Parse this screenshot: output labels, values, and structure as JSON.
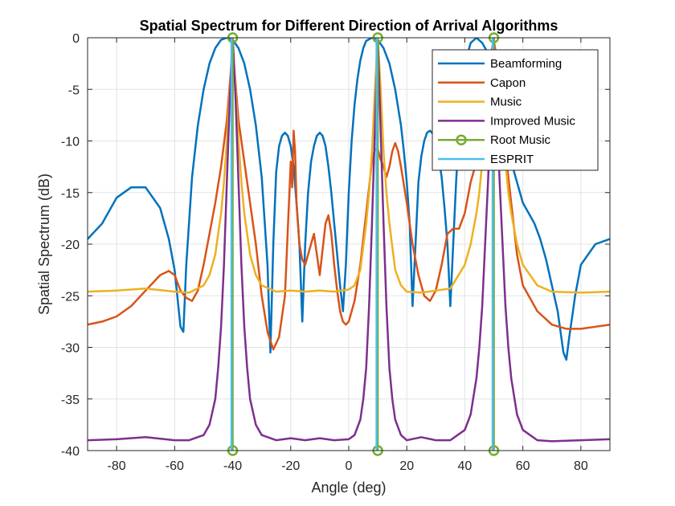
{
  "chart_data": {
    "type": "line",
    "title": "Spatial Spectrum for Different Direction of Arrival Algorithms",
    "xlabel": "Angle (deg)",
    "ylabel": "Spatial Spectrum (dB)",
    "xlim": [
      -90,
      90
    ],
    "ylim": [
      -40,
      0
    ],
    "xticks": [
      -80,
      -60,
      -40,
      -20,
      0,
      20,
      40,
      60,
      80
    ],
    "yticks": [
      0,
      -5,
      -10,
      -15,
      -20,
      -25,
      -30,
      -35,
      -40
    ],
    "grid": true,
    "legend_position": "top-right",
    "series": [
      {
        "name": "Beamforming",
        "color": "#0072BD",
        "x": [
          -90,
          -85,
          -80,
          -75,
          -70,
          -65,
          -62,
          -60,
          -58,
          -57,
          -56,
          -54,
          -52,
          -50,
          -48,
          -46,
          -44,
          -42,
          -40,
          -38,
          -36,
          -34,
          -32,
          -30,
          -28,
          -27,
          -26,
          -25,
          -24,
          -23,
          -22,
          -21,
          -20,
          -19,
          -18,
          -17,
          -16,
          -15,
          -14,
          -13,
          -12,
          -11,
          -10,
          -9,
          -8,
          -7,
          -6,
          -5,
          -4,
          -3,
          -2,
          -1,
          0,
          1,
          2,
          3,
          4,
          5,
          6,
          8,
          10,
          12,
          14,
          16,
          18,
          19,
          20,
          21,
          22,
          23,
          24,
          25,
          26,
          27,
          28,
          29,
          30,
          31,
          32,
          33,
          34,
          35,
          36,
          37,
          38,
          39,
          40,
          41,
          42,
          44,
          46,
          48,
          50,
          52,
          54,
          56,
          58,
          60,
          62,
          64,
          66,
          68,
          70,
          72,
          74,
          75,
          76,
          77,
          78,
          80,
          85,
          90
        ],
        "y": [
          -19.5,
          -18,
          -15.5,
          -14.5,
          -14.5,
          -16.5,
          -19.5,
          -22.5,
          -28,
          -28.5,
          -22,
          -13.5,
          -8.5,
          -5,
          -2.5,
          -1,
          -0.2,
          0,
          -0.2,
          -1,
          -2.5,
          -5,
          -8.5,
          -13.5,
          -22,
          -30.5,
          -20,
          -13,
          -10.5,
          -9.5,
          -9.2,
          -9.5,
          -10.5,
          -12.5,
          -16,
          -20,
          -27.5,
          -20,
          -15,
          -12,
          -10.5,
          -9.5,
          -9.2,
          -9.5,
          -10.5,
          -12.5,
          -15,
          -18,
          -21,
          -24,
          -26.5,
          -22,
          -15,
          -10,
          -6.5,
          -4,
          -2.2,
          -1,
          -0.3,
          0,
          -0.2,
          -1,
          -2.5,
          -5,
          -8.5,
          -11,
          -14,
          -18,
          -26,
          -20,
          -14,
          -11.5,
          -10,
          -9.2,
          -9,
          -9.3,
          -10,
          -11.5,
          -13.5,
          -16.5,
          -20,
          -26,
          -20,
          -14,
          -9,
          -5.5,
          -3,
          -1.5,
          -0.5,
          0,
          -0.5,
          -1.5,
          -3,
          -5.5,
          -9,
          -12,
          -14,
          -16,
          -17,
          -18,
          -19.5,
          -21.5,
          -24,
          -26.5,
          -30.5,
          -31.2,
          -29,
          -27,
          -25,
          -22,
          -20,
          -19.5
        ]
      },
      {
        "name": "Capon",
        "color": "#D95319",
        "x": [
          -90,
          -85,
          -80,
          -75,
          -70,
          -65,
          -62,
          -60,
          -58,
          -56,
          -54,
          -52,
          -50,
          -48,
          -46,
          -44,
          -42,
          -41,
          -40,
          -39,
          -38,
          -36,
          -34,
          -32,
          -30,
          -28,
          -26,
          -24,
          -22,
          -20,
          -19.5,
          -19,
          -18.5,
          -18,
          -17,
          -16,
          -15,
          -14,
          -12,
          -10,
          -8,
          -7,
          -6,
          -5,
          -4,
          -3,
          -2,
          -1,
          0,
          2,
          4,
          6,
          8,
          9,
          10,
          11,
          12,
          13,
          14,
          15,
          16,
          17,
          18,
          20,
          22,
          24,
          26,
          28,
          30,
          32,
          34,
          36,
          38,
          40,
          42,
          44,
          46,
          48,
          49,
          50,
          51,
          52,
          54,
          56,
          58,
          60,
          65,
          70,
          75,
          80,
          85,
          90
        ],
        "y": [
          -27.8,
          -27.5,
          -27,
          -26,
          -24.5,
          -23,
          -22.6,
          -23,
          -24.5,
          -25.2,
          -25.5,
          -24.5,
          -22,
          -19,
          -16,
          -12.5,
          -8,
          -4.5,
          -1,
          -4.5,
          -8,
          -12,
          -16,
          -20,
          -25,
          -28.5,
          -30.2,
          -29,
          -25,
          -12,
          -14.5,
          -9,
          -11,
          -16,
          -20,
          -21.5,
          -22,
          -21,
          -19,
          -23,
          -18,
          -17.2,
          -19,
          -22,
          -24.5,
          -26.5,
          -27.5,
          -27.8,
          -27.5,
          -25.5,
          -22,
          -17,
          -12,
          -10.8,
          -10.8,
          -11.8,
          -12.5,
          -13.5,
          -12.5,
          -11,
          -10.2,
          -11,
          -12.5,
          -16,
          -20,
          -23,
          -25,
          -25.5,
          -24.5,
          -22,
          -19,
          -18.5,
          -18.5,
          -17,
          -14,
          -12,
          -8.5,
          -5,
          -1.5,
          -0.3,
          -2,
          -5,
          -11,
          -16,
          -21,
          -24,
          -26.5,
          -27.8,
          -28.2,
          -28.2,
          -28,
          -27.8
        ]
      },
      {
        "name": "Music",
        "color": "#EDB120",
        "x": [
          -90,
          -80,
          -70,
          -60,
          -55,
          -50,
          -48,
          -46,
          -44,
          -43,
          -42,
          -41,
          -40,
          -39,
          -38,
          -37,
          -36,
          -34,
          -32,
          -30,
          -25,
          -20,
          -15,
          -10,
          -5,
          0,
          2,
          4,
          6,
          7,
          8,
          9,
          10,
          11,
          12,
          13,
          14,
          16,
          18,
          20,
          25,
          30,
          35,
          40,
          42,
          44,
          45,
          46,
          47,
          48,
          49,
          50,
          51,
          52,
          53,
          54,
          55,
          56,
          58,
          60,
          65,
          70,
          80,
          90
        ],
        "y": [
          -24.6,
          -24.5,
          -24.3,
          -24.6,
          -24.7,
          -24,
          -23,
          -21,
          -17,
          -14,
          -10,
          -5,
          0,
          -5,
          -10,
          -14,
          -17,
          -21,
          -23,
          -24,
          -24.6,
          -24.5,
          -24.6,
          -24.5,
          -24.6,
          -24.4,
          -24,
          -22.5,
          -18,
          -15,
          -11,
          -5,
          0,
          -5,
          -11,
          -15,
          -18,
          -22.5,
          -24,
          -24.6,
          -24.7,
          -24.5,
          -24.3,
          -22,
          -20,
          -17,
          -15,
          -12,
          -10,
          -7,
          -4,
          0,
          -4,
          -7,
          -10,
          -12,
          -15,
          -17,
          -20,
          -22,
          -24,
          -24.6,
          -24.7,
          -24.6
        ]
      },
      {
        "name": "Improved Music",
        "color": "#7E2F8E",
        "x": [
          -90,
          -80,
          -70,
          -60,
          -55,
          -50,
          -48,
          -46,
          -45,
          -44,
          -43,
          -42,
          -41,
          -40,
          -39,
          -38,
          -37,
          -36,
          -35,
          -34,
          -32,
          -30,
          -25,
          -20,
          -15,
          -10,
          -5,
          0,
          2,
          4,
          5,
          6,
          7,
          8,
          9,
          10,
          11,
          12,
          13,
          14,
          15,
          16,
          18,
          20,
          25,
          30,
          35,
          40,
          42,
          44,
          45,
          46,
          47,
          48,
          49,
          50,
          51,
          52,
          53,
          54,
          55,
          56,
          58,
          60,
          65,
          70,
          80,
          90
        ],
        "y": [
          -39,
          -38.9,
          -38.7,
          -39,
          -39,
          -38.5,
          -37.5,
          -35,
          -32,
          -28,
          -22,
          -14,
          -6,
          0,
          -6,
          -14,
          -22,
          -28,
          -32,
          -35,
          -37.5,
          -38.5,
          -39,
          -38.8,
          -39,
          -38.8,
          -39,
          -38.9,
          -38.5,
          -37,
          -35,
          -32,
          -26,
          -18,
          -9,
          0,
          -9,
          -18,
          -26,
          -32,
          -35,
          -37,
          -38.5,
          -39,
          -38.7,
          -39,
          -39,
          -38,
          -36.5,
          -33,
          -30,
          -26,
          -20,
          -14,
          -7,
          0,
          -7,
          -14,
          -20,
          -26,
          -30,
          -33,
          -36.5,
          -38,
          -39,
          -39.1,
          -39,
          -38.9
        ]
      }
    ],
    "stem_series": [
      {
        "name": "Root Music",
        "color": "#77AC30",
        "x": [
          -40,
          10,
          50
        ],
        "top": [
          0,
          0,
          0
        ],
        "bottom": [
          -40,
          -40,
          -40
        ],
        "marker": "circle"
      },
      {
        "name": "ESPRIT",
        "color": "#4DBEEE",
        "x": [
          -40,
          10,
          50
        ],
        "top": [
          0,
          0,
          0
        ],
        "bottom": [
          -40,
          -40,
          -40
        ],
        "marker": "none"
      }
    ]
  }
}
